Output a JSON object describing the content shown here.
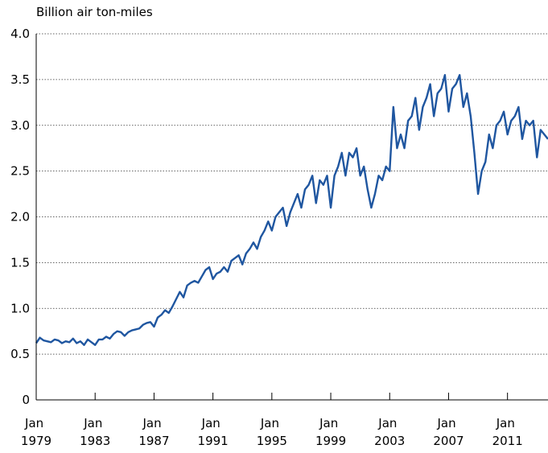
{
  "chart_data": {
    "type": "line",
    "y_label": "Billion air ton-miles",
    "x": [
      "1979-01",
      "1979-04",
      "1979-07",
      "1979-10",
      "1980-01",
      "1980-04",
      "1980-07",
      "1980-10",
      "1981-01",
      "1981-04",
      "1981-07",
      "1981-10",
      "1982-01",
      "1982-04",
      "1982-07",
      "1982-10",
      "1983-01",
      "1983-04",
      "1983-07",
      "1983-10",
      "1984-01",
      "1984-04",
      "1984-07",
      "1984-10",
      "1985-01",
      "1985-04",
      "1985-07",
      "1985-10",
      "1986-01",
      "1986-04",
      "1986-07",
      "1986-10",
      "1987-01",
      "1987-04",
      "1987-07",
      "1987-10",
      "1988-01",
      "1988-04",
      "1988-07",
      "1988-10",
      "1989-01",
      "1989-04",
      "1989-07",
      "1989-10",
      "1990-01",
      "1990-04",
      "1990-07",
      "1990-10",
      "1991-01",
      "1991-04",
      "1991-07",
      "1991-10",
      "1992-01",
      "1992-04",
      "1992-07",
      "1992-10",
      "1993-01",
      "1993-04",
      "1993-07",
      "1993-10",
      "1994-01",
      "1994-04",
      "1994-07",
      "1994-10",
      "1995-01",
      "1995-04",
      "1995-07",
      "1995-10",
      "1996-01",
      "1996-04",
      "1996-07",
      "1996-10",
      "1997-01",
      "1997-04",
      "1997-07",
      "1997-10",
      "1998-01",
      "1998-04",
      "1998-07",
      "1998-10",
      "1999-01",
      "1999-04",
      "1999-07",
      "1999-10",
      "2000-01",
      "2000-04",
      "2000-07",
      "2000-10",
      "2001-01",
      "2001-04",
      "2001-07",
      "2001-10",
      "2002-01",
      "2002-04",
      "2002-07",
      "2002-10",
      "2003-01",
      "2003-04",
      "2003-07",
      "2003-10",
      "2004-01",
      "2004-04",
      "2004-07",
      "2004-10",
      "2005-01",
      "2005-04",
      "2005-07",
      "2005-10",
      "2006-01",
      "2006-04",
      "2006-07",
      "2006-10",
      "2007-01",
      "2007-04",
      "2007-07",
      "2007-10",
      "2008-01",
      "2008-04",
      "2008-07",
      "2008-10",
      "2009-01",
      "2009-04",
      "2009-07",
      "2009-10",
      "2010-01",
      "2010-04",
      "2010-07",
      "2010-10",
      "2011-01",
      "2011-04",
      "2011-07",
      "2011-10",
      "2012-01",
      "2012-04",
      "2012-07",
      "2012-10",
      "2013-01",
      "2013-04",
      "2013-07",
      "2013-10"
    ],
    "series": [
      {
        "color": "#1f56a0",
        "values": [
          0.62,
          0.68,
          0.65,
          0.64,
          0.63,
          0.66,
          0.65,
          0.62,
          0.64,
          0.63,
          0.67,
          0.62,
          0.64,
          0.6,
          0.66,
          0.63,
          0.6,
          0.66,
          0.66,
          0.69,
          0.67,
          0.72,
          0.75,
          0.74,
          0.7,
          0.74,
          0.76,
          0.77,
          0.78,
          0.82,
          0.84,
          0.85,
          0.8,
          0.9,
          0.93,
          0.98,
          0.95,
          1.02,
          1.1,
          1.18,
          1.12,
          1.25,
          1.28,
          1.3,
          1.28,
          1.35,
          1.42,
          1.45,
          1.32,
          1.38,
          1.4,
          1.45,
          1.4,
          1.52,
          1.55,
          1.58,
          1.48,
          1.6,
          1.65,
          1.72,
          1.65,
          1.78,
          1.85,
          1.95,
          1.85,
          2.0,
          2.05,
          2.1,
          1.9,
          2.05,
          2.15,
          2.25,
          2.1,
          2.3,
          2.35,
          2.45,
          2.15,
          2.4,
          2.35,
          2.45,
          2.1,
          2.45,
          2.55,
          2.7,
          2.45,
          2.7,
          2.65,
          2.75,
          2.45,
          2.55,
          2.3,
          2.1,
          2.25,
          2.45,
          2.4,
          2.55,
          2.5,
          3.2,
          2.75,
          2.9,
          2.75,
          3.05,
          3.1,
          3.3,
          2.95,
          3.2,
          3.3,
          3.45,
          3.1,
          3.35,
          3.4,
          3.55,
          3.15,
          3.4,
          3.45,
          3.55,
          3.2,
          3.35,
          3.1,
          2.7,
          2.25,
          2.5,
          2.6,
          2.9,
          2.75,
          3.0,
          3.05,
          3.15,
          2.9,
          3.05,
          3.1,
          3.2,
          2.85,
          3.05,
          3.0,
          3.05,
          2.65,
          2.95,
          2.9,
          2.85
        ]
      }
    ],
    "xlim": [
      "1979-01",
      "2013-10"
    ],
    "xticks": [
      {
        "value": "1979-01",
        "label": "Jan 1979"
      },
      {
        "value": "1983-01",
        "label": "Jan 1983"
      },
      {
        "value": "1987-01",
        "label": "Jan 1987"
      },
      {
        "value": "1991-01",
        "label": "Jan 1991"
      },
      {
        "value": "1995-01",
        "label": "Jan 1995"
      },
      {
        "value": "1999-01",
        "label": "Jan 1999"
      },
      {
        "value": "2003-01",
        "label": "Jan 2003"
      },
      {
        "value": "2007-01",
        "label": "Jan 2007"
      },
      {
        "value": "2011-01",
        "label": "Jan 2011"
      }
    ],
    "ylim": [
      0,
      4
    ],
    "yticks": [
      0,
      0.5,
      {
        "value": 1,
        "label": "1.0"
      },
      1.5,
      {
        "value": 2,
        "label": "2.0"
      },
      2.5,
      {
        "value": 3,
        "label": "3.0"
      },
      3.5,
      {
        "value": 4,
        "label": "4.0"
      }
    ],
    "grid": true
  }
}
